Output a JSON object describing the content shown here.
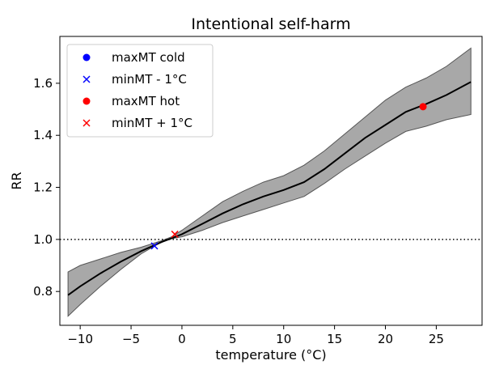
{
  "chart_data": {
    "type": "line",
    "title": "Intentional self-harm",
    "xlabel": "temperature (°C)",
    "ylabel": "RR",
    "xlim": [
      -12.0,
      29.5
    ],
    "ylim": [
      0.67,
      1.78
    ],
    "xticks": [
      -10,
      -5,
      0,
      5,
      10,
      15,
      20,
      25
    ],
    "xtick_labels": [
      "−10",
      "−5",
      "0",
      "5",
      "10",
      "15",
      "20",
      "25"
    ],
    "yticks": [
      0.8,
      1.0,
      1.2,
      1.4,
      1.6
    ],
    "ytick_labels": [
      "0.8",
      "1.0",
      "1.2",
      "1.4",
      "1.6"
    ],
    "grid": false,
    "legend_position": "top-left",
    "reference_line": {
      "y": 1.0,
      "style": "dotted",
      "color": "#000000"
    },
    "series": [
      {
        "type": "line",
        "color": "#000000",
        "x": [
          -11.2,
          -10,
          -8,
          -6,
          -4,
          -2,
          -1,
          0,
          2,
          4,
          6,
          8,
          10,
          12,
          14,
          16,
          18,
          20,
          22,
          24,
          26,
          28.4
        ],
        "y": [
          0.786,
          0.82,
          0.87,
          0.915,
          0.955,
          0.99,
          1.005,
          1.02,
          1.06,
          1.1,
          1.135,
          1.165,
          1.19,
          1.22,
          1.27,
          1.33,
          1.39,
          1.44,
          1.49,
          1.52,
          1.555,
          1.605
        ]
      },
      {
        "type": "band",
        "color": "#999999",
        "x": [
          -11.2,
          -10,
          -8,
          -6,
          -4,
          -2,
          -1,
          0,
          2,
          4,
          6,
          8,
          10,
          12,
          14,
          16,
          18,
          20,
          22,
          24,
          26,
          28.4
        ],
        "lower": [
          0.705,
          0.75,
          0.82,
          0.885,
          0.945,
          0.99,
          1.003,
          1.01,
          1.035,
          1.065,
          1.09,
          1.115,
          1.14,
          1.165,
          1.215,
          1.27,
          1.32,
          1.37,
          1.415,
          1.435,
          1.46,
          1.48
        ],
        "upper": [
          0.875,
          0.9,
          0.925,
          0.95,
          0.97,
          0.995,
          1.01,
          1.035,
          1.09,
          1.145,
          1.185,
          1.22,
          1.245,
          1.285,
          1.34,
          1.405,
          1.47,
          1.535,
          1.585,
          1.62,
          1.665,
          1.735
        ]
      }
    ],
    "markers": [
      {
        "name": "maxMT cold",
        "marker": "o",
        "color": "#0000ff",
        "x": null,
        "y": null
      },
      {
        "name": "minMT - 1°C",
        "marker": "x",
        "color": "#0000ff",
        "x": -2.7,
        "y": 0.975
      },
      {
        "name": "maxMT hot",
        "marker": "o",
        "color": "#ff0000",
        "x": 23.7,
        "y": 1.51
      },
      {
        "name": "minMT + 1°C",
        "marker": "x",
        "color": "#ff0000",
        "x": -0.7,
        "y": 1.02
      }
    ]
  }
}
